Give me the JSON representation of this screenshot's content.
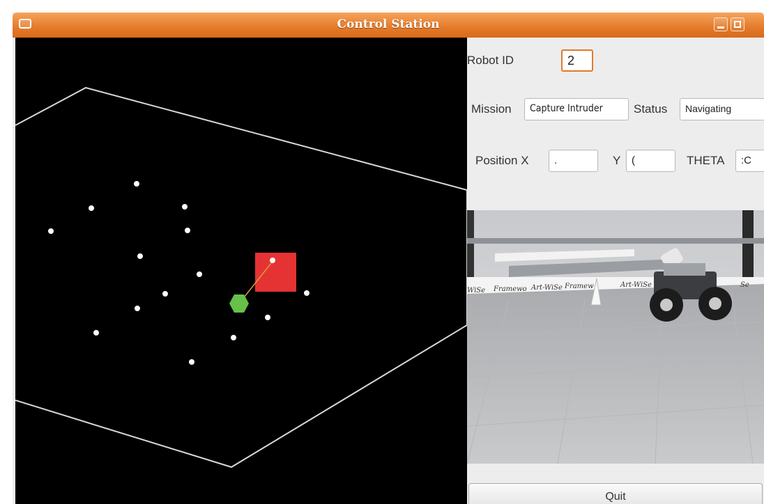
{
  "window": {
    "title": "Control Station"
  },
  "form": {
    "robot_id_label": "Robot ID",
    "robot_id_value": "2",
    "mission_label": "Mission",
    "mission_value": "Capture Intruder",
    "status_label": "Status",
    "status_value": "Navigating",
    "position_x_label": "Position X",
    "position_x_value": ".",
    "y_label": "Y",
    "y_value": "(",
    "theta_label": "THETA",
    "theta_value": ":C"
  },
  "camera": {
    "banner_texts": [
      "WiSe",
      "Framewo",
      "Art-WiSe",
      "Framew",
      "Art-WiSe",
      "Se"
    ]
  },
  "buttons": {
    "quit_label": "Quit"
  },
  "colors": {
    "titlebar": "#e47a2a",
    "target_square": "#e53232",
    "robot_marker": "#66c04a",
    "map_background": "#000000",
    "boundary": "#d8d8d8"
  }
}
